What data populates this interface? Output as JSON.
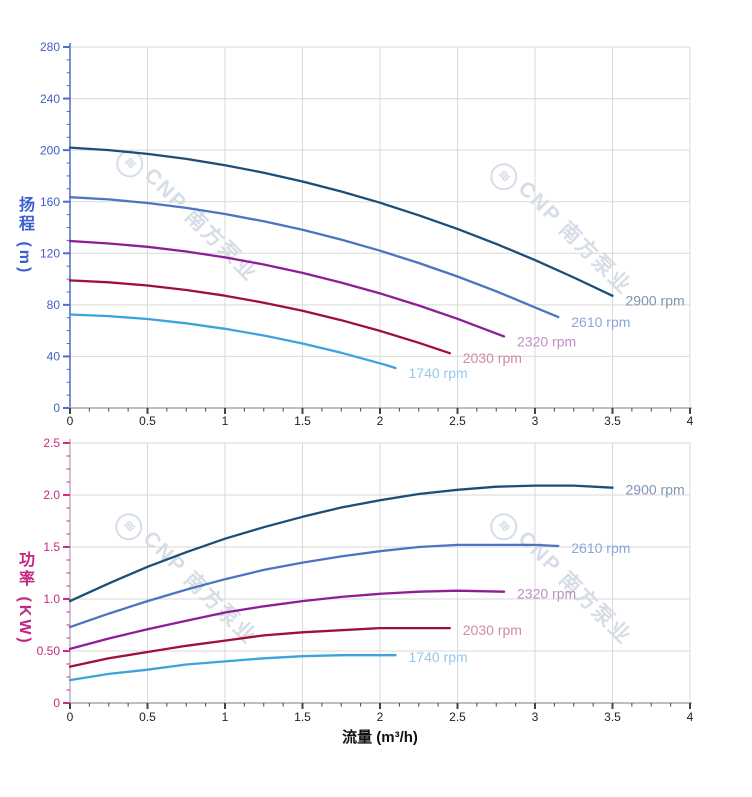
{
  "watermark": {
    "text": "CNP 南方泵业",
    "logo_glyph": "≋"
  },
  "chart_data": [
    {
      "type": "line",
      "panel": "head",
      "title": "",
      "xlabel": "",
      "ylabel": "扬程 (m)",
      "xlim": [
        0,
        4
      ],
      "ylim": [
        0,
        280
      ],
      "grid": true,
      "legend_position": "end-of-line labels",
      "x_major_ticks": [
        0,
        0.5,
        1,
        1.5,
        2,
        2.5,
        3,
        3.5,
        4
      ],
      "x_tick_labels": [
        "0",
        "0.5",
        "1",
        "1.5",
        "2",
        "2.5",
        "3",
        "3.5",
        "4"
      ],
      "x_minor_step": 0.125,
      "y_major_ticks": [
        0,
        40,
        80,
        120,
        160,
        200,
        240,
        280
      ],
      "y_tick_labels": [
        "0",
        "40",
        "80",
        "120",
        "160",
        "200",
        "240",
        "280"
      ],
      "y_minor_step": 10,
      "series": [
        {
          "name": "2900 rpm",
          "color": "#1c4e78",
          "label_color": "#7e95b3",
          "x": [
            0,
            0.25,
            0.5,
            0.75,
            1,
            1.25,
            1.5,
            1.75,
            2,
            2.25,
            2.5,
            2.75,
            3,
            3.25,
            3.5
          ],
          "y": [
            202,
            200,
            197.1,
            193.2,
            188.3,
            182.5,
            175.7,
            167.9,
            159.2,
            149.5,
            138.9,
            127.3,
            114.7,
            101.2,
            87
          ]
        },
        {
          "name": "2610 rpm",
          "color": "#4d74c2",
          "label_color": "#8ba5dd",
          "x": [
            0,
            0.25,
            0.5,
            0.75,
            1,
            1.25,
            1.5,
            1.75,
            2,
            2.25,
            2.5,
            2.75,
            3,
            3.15
          ],
          "y": [
            163.5,
            161.8,
            159,
            155.2,
            150.5,
            144.8,
            138.2,
            130.6,
            122,
            112.5,
            102,
            90.5,
            78,
            70.5
          ]
        },
        {
          "name": "2320 rpm",
          "color": "#8f1d96",
          "label_color": "#c08fc7",
          "x": [
            0,
            0.25,
            0.5,
            0.75,
            1,
            1.25,
            1.5,
            1.75,
            2,
            2.25,
            2.5,
            2.8
          ],
          "y": [
            129.5,
            127.6,
            125,
            121.4,
            116.8,
            111.3,
            104.8,
            97.3,
            88.9,
            79.5,
            69.2,
            55.5
          ]
        },
        {
          "name": "2030 rpm",
          "color": "#9e1136",
          "label_color": "#cf8d9d",
          "x": [
            0,
            0.25,
            0.5,
            0.75,
            1,
            1.25,
            1.5,
            1.75,
            2,
            2.25,
            2.45
          ],
          "y": [
            99,
            97.5,
            95,
            91.5,
            87.1,
            81.7,
            75.4,
            68.1,
            59.8,
            50.6,
            42.5
          ]
        },
        {
          "name": "1740 rpm",
          "color": "#3da3de",
          "label_color": "#92c9ec",
          "x": [
            0,
            0.25,
            0.5,
            0.75,
            1,
            1.25,
            1.5,
            1.75,
            2,
            2.1
          ],
          "y": [
            72.5,
            71.3,
            69,
            65.7,
            61.4,
            56.2,
            50,
            42.8,
            34.7,
            31
          ]
        }
      ]
    },
    {
      "type": "line",
      "panel": "power",
      "title": "",
      "xlabel": "流量 (m³/h)",
      "ylabel": "功率 (KW)",
      "xlim": [
        0,
        4
      ],
      "ylim": [
        0,
        2.5
      ],
      "grid": true,
      "legend_position": "end-of-line labels",
      "x_major_ticks": [
        0,
        0.5,
        1,
        1.5,
        2,
        2.5,
        3,
        3.5,
        4
      ],
      "x_tick_labels": [
        "0",
        "0.5",
        "1",
        "1.5",
        "2",
        "2.5",
        "3",
        "3.5",
        "4"
      ],
      "x_minor_step": 0.125,
      "y_major_ticks": [
        0,
        0.5,
        1,
        1.5,
        2,
        2.5
      ],
      "y_tick_labels": [
        "0",
        "0.50",
        "1.0",
        "1.5",
        "2.0",
        "2.5"
      ],
      "y_minor_step": 0.125,
      "series": [
        {
          "name": "2900 rpm",
          "color": "#1c4e78",
          "label_color": "#7e95b3",
          "x": [
            0,
            0.25,
            0.5,
            0.75,
            1,
            1.25,
            1.5,
            1.75,
            2,
            2.25,
            2.5,
            2.75,
            3,
            3.25,
            3.5
          ],
          "y": [
            0.98,
            1.15,
            1.31,
            1.45,
            1.58,
            1.69,
            1.79,
            1.88,
            1.95,
            2.01,
            2.05,
            2.08,
            2.09,
            2.09,
            2.07
          ]
        },
        {
          "name": "2610 rpm",
          "color": "#4d74c2",
          "label_color": "#8ba5dd",
          "x": [
            0,
            0.25,
            0.5,
            0.75,
            1,
            1.25,
            1.5,
            1.75,
            2,
            2.25,
            2.5,
            2.75,
            3,
            3.15
          ],
          "y": [
            0.73,
            0.86,
            0.98,
            1.09,
            1.19,
            1.28,
            1.35,
            1.41,
            1.46,
            1.5,
            1.52,
            1.52,
            1.52,
            1.51
          ]
        },
        {
          "name": "2320 rpm",
          "color": "#8f1d96",
          "label_color": "#c08fc7",
          "x": [
            0,
            0.25,
            0.5,
            0.75,
            1,
            1.25,
            1.5,
            1.75,
            2,
            2.25,
            2.5,
            2.8
          ],
          "y": [
            0.52,
            0.62,
            0.71,
            0.79,
            0.87,
            0.93,
            0.98,
            1.02,
            1.05,
            1.07,
            1.08,
            1.07
          ]
        },
        {
          "name": "2030 rpm",
          "color": "#9e1136",
          "label_color": "#cf8d9d",
          "x": [
            0,
            0.25,
            0.5,
            0.75,
            1,
            1.25,
            1.5,
            1.75,
            2,
            2.25,
            2.45
          ],
          "y": [
            0.35,
            0.43,
            0.49,
            0.55,
            0.6,
            0.65,
            0.68,
            0.7,
            0.72,
            0.72,
            0.72
          ]
        },
        {
          "name": "1740 rpm",
          "color": "#3da3de",
          "label_color": "#92c9ec",
          "x": [
            0,
            0.25,
            0.5,
            0.75,
            1,
            1.25,
            1.5,
            1.75,
            2,
            2.1
          ],
          "y": [
            0.22,
            0.28,
            0.32,
            0.37,
            0.4,
            0.43,
            0.45,
            0.46,
            0.46,
            0.46
          ]
        }
      ]
    }
  ]
}
